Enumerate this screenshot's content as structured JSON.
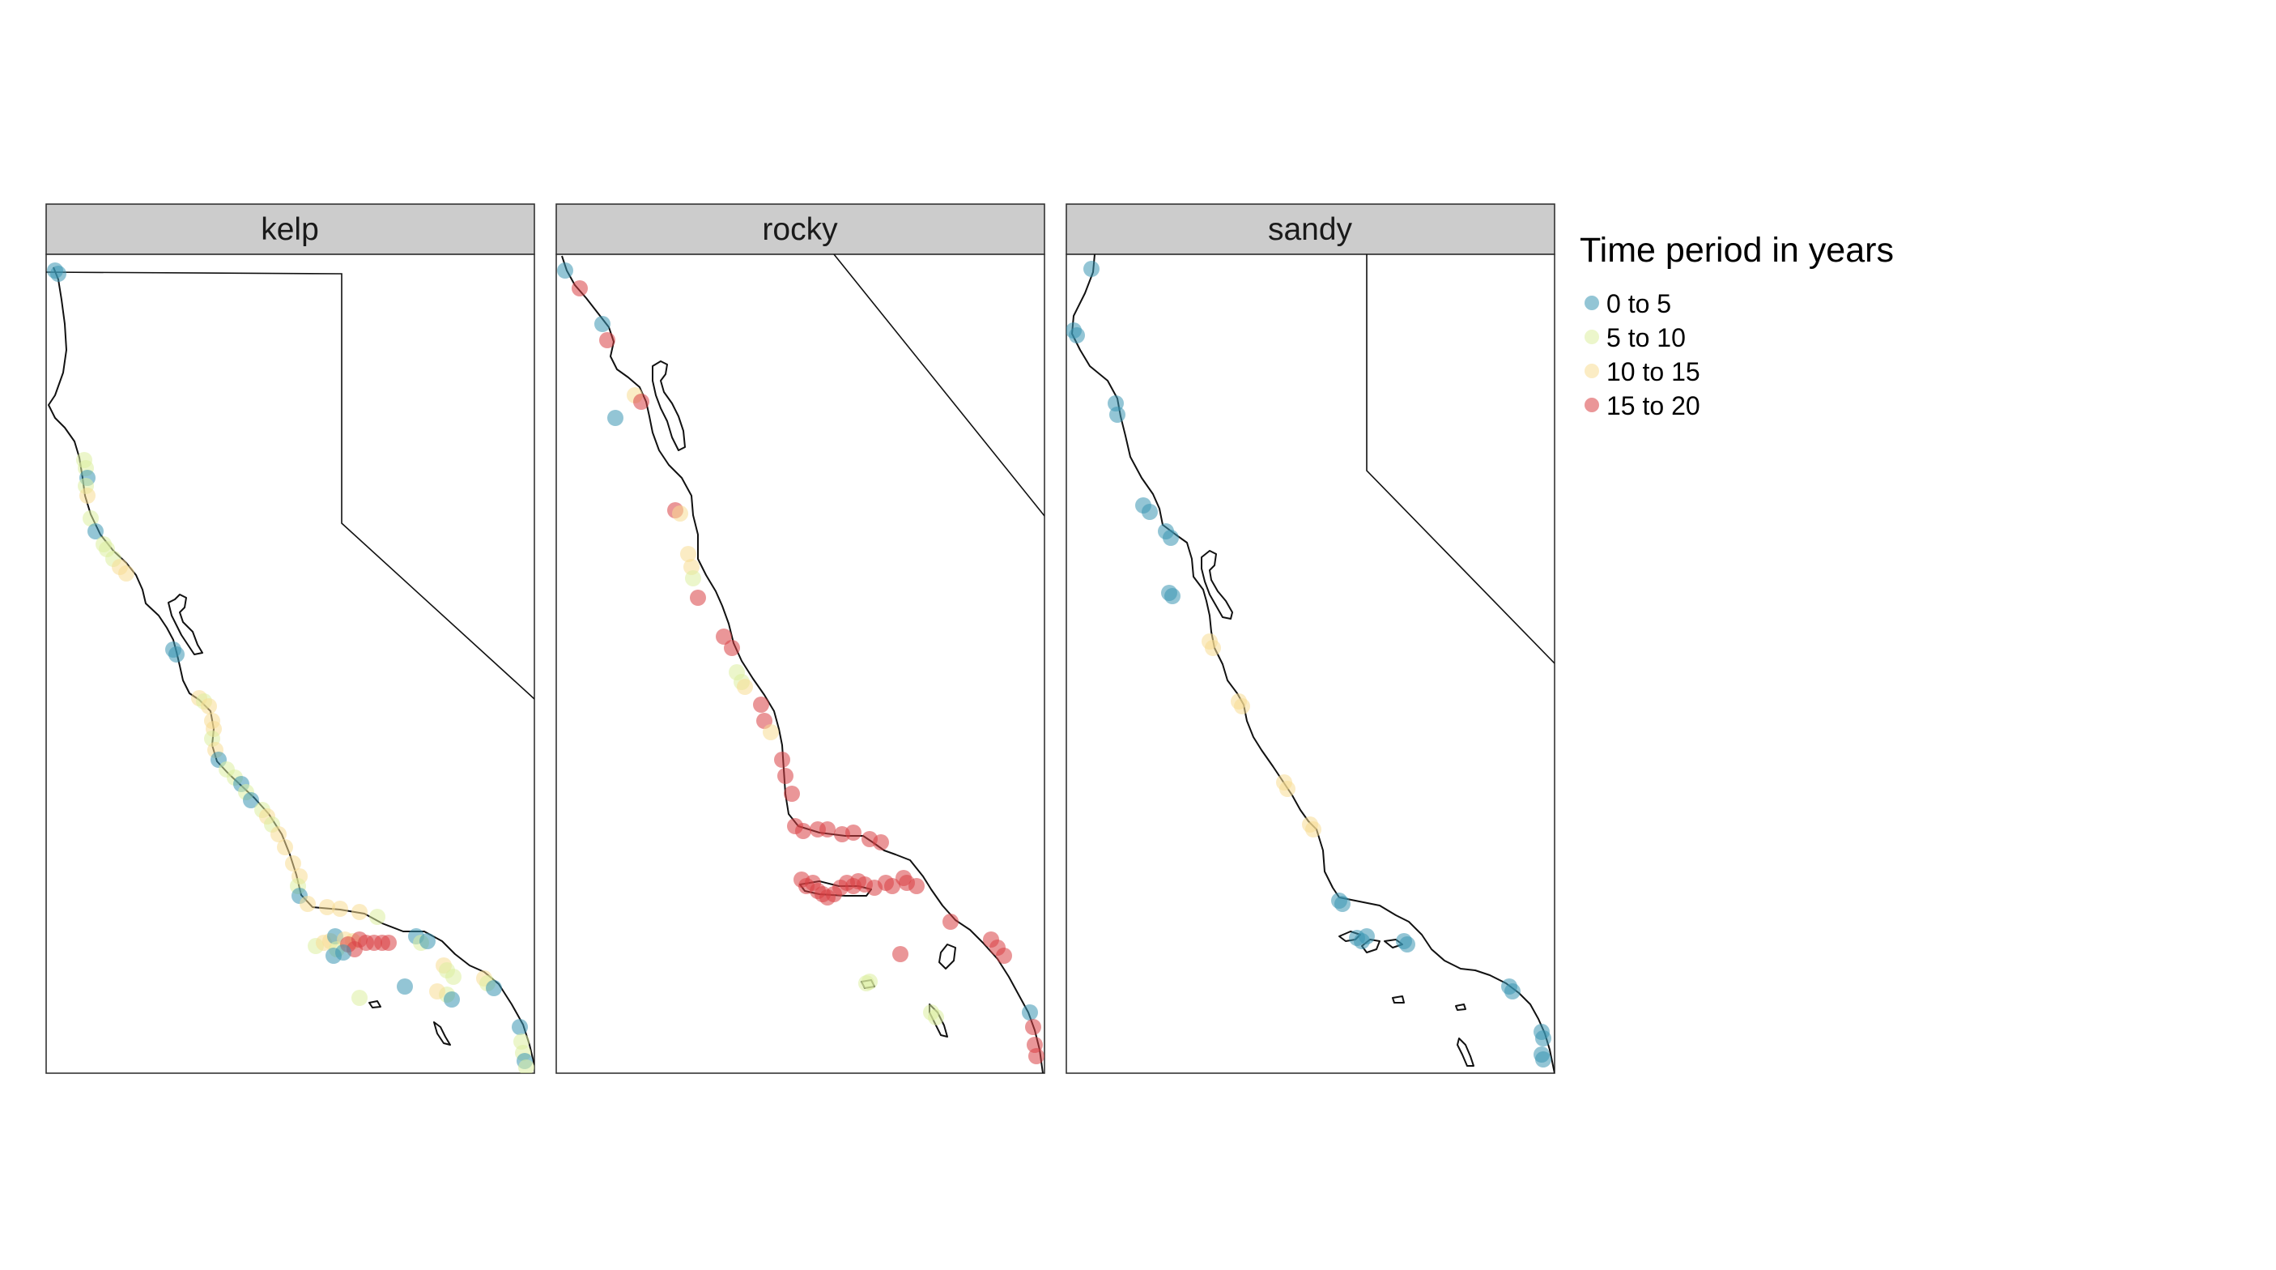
{
  "panels": [
    {
      "id": "kelp",
      "label": "kelp"
    },
    {
      "id": "rocky",
      "label": "rocky"
    },
    {
      "id": "sandy",
      "label": "sandy"
    }
  ],
  "legend": {
    "title": "Time period in years",
    "items": [
      {
        "label": "0 to 5",
        "color": "#3a96b3"
      },
      {
        "label": "5 to 10",
        "color": "#dceea1"
      },
      {
        "label": "10 to 15",
        "color": "#f7dc94"
      },
      {
        "label": "15 to 20",
        "color": "#d94044"
      }
    ]
  }
}
